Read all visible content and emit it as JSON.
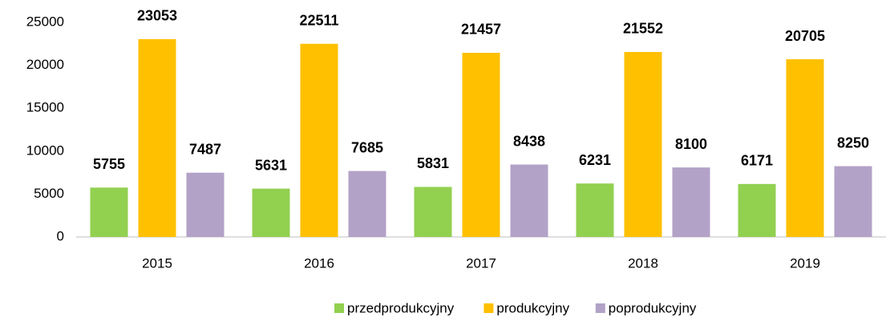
{
  "chart_data": {
    "type": "bar",
    "categories": [
      "2015",
      "2016",
      "2017",
      "2018",
      "2019"
    ],
    "series": [
      {
        "name": "przedprodukcyjny",
        "color": "#92d050",
        "values": [
          5755,
          5631,
          5831,
          6231,
          6171
        ]
      },
      {
        "name": "produkcyjny",
        "color": "#ffc000",
        "values": [
          23053,
          22511,
          21457,
          21552,
          20705
        ]
      },
      {
        "name": "poprodukcyjny",
        "color": "#b3a2c7",
        "values": [
          7487,
          7685,
          8438,
          8100,
          8250
        ]
      }
    ],
    "ylim": [
      0,
      25000
    ],
    "yticks": [
      0,
      5000,
      10000,
      15000,
      20000,
      25000
    ],
    "grid": false,
    "legend": "bottom"
  }
}
